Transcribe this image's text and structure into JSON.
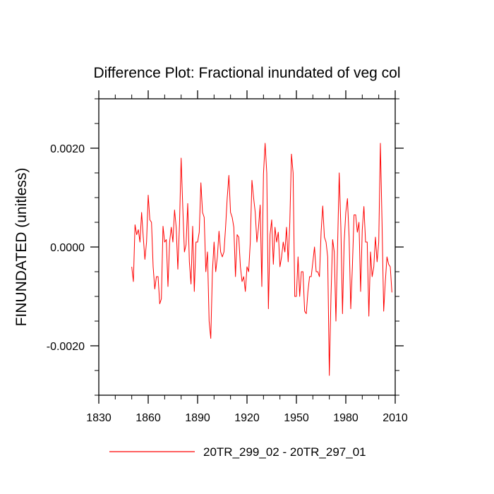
{
  "chart_data": {
    "type": "line",
    "title": "Difference Plot: Fractional inundated of veg col",
    "xlabel": "",
    "ylabel": "FINUNDATED  (unitless)",
    "xlim": [
      1830,
      2010
    ],
    "ylim": [
      -0.003,
      0.003
    ],
    "x_ticks": [
      1830,
      1860,
      1890,
      1920,
      1950,
      1980,
      2010
    ],
    "x_tick_labels": [
      "1830",
      "1860",
      "1890",
      "1920",
      "1950",
      "1980",
      "2010"
    ],
    "y_ticks": [
      -0.002,
      0.0,
      0.002
    ],
    "y_tick_labels": [
      "-0.0020",
      "0.0000",
      "0.0020"
    ],
    "grid": false,
    "legend_position": "bottom-center",
    "series": [
      {
        "name": "20TR_299_02 - 20TR_297_01",
        "color": "#ff0000",
        "x_start": 1850,
        "x_step": 1,
        "values": [
          -0.0004,
          -0.0007,
          0.00045,
          0.00025,
          0.00035,
          0.0001,
          0.0007,
          0.0002,
          -0.00025,
          0.0001,
          0.00105,
          0.00055,
          0.0005,
          -0.0004,
          -0.00085,
          -0.0006,
          -0.0006,
          -0.00115,
          -0.00105,
          0.00042,
          0.0001,
          0.00015,
          -0.0008,
          0.0001,
          0.0004,
          0.0001,
          0.00075,
          0.0004,
          -0.00045,
          0.00045,
          0.0018,
          0.0008,
          -0.0001,
          5e-05,
          0.00088,
          -0.0003,
          -0.00075,
          0.00042,
          -0.0009,
          0.0001,
          0.0001,
          0.0003,
          0.0013,
          0.0007,
          0.0006,
          -0.0005,
          -0.0001,
          -0.0015,
          -0.00185,
          -0.0005,
          0.0001,
          -0.0005,
          -0.0002,
          0.00032,
          -0.0001,
          -0.0002,
          -0.0001,
          0.0004,
          0.001,
          0.00145,
          0.0007,
          0.0006,
          0.0004,
          -0.0006,
          0.00025,
          0.0002,
          -0.0004,
          -0.0007,
          -0.0006,
          -0.0009,
          -0.0004,
          -0.0005,
          0.0001,
          0.00135,
          0.001,
          0.0007,
          0.0001,
          0.0004,
          0.00085,
          -0.0008,
          0.00148,
          0.0021,
          0.0015,
          -0.00125,
          0.00025,
          0.00055,
          -0.00035,
          0.0004,
          0.0001,
          0.0003,
          -0.0004,
          -0.0002,
          0.0001,
          -0.0001,
          0.0004,
          -0.0003,
          0.0005,
          0.00188,
          0.0015,
          -0.001,
          -0.001,
          -0.0002,
          -0.001,
          -0.0005,
          -0.0005,
          -0.0013,
          -0.00135,
          -0.0009,
          -0.0006,
          -0.0006,
          -0.0003,
          0.0,
          -0.0005,
          -0.0005,
          -0.0006,
          0.0003,
          0.00083,
          0.0002,
          0.0001,
          -0.0002,
          -0.0026,
          -0.001,
          0.00015,
          -0.0001,
          -0.0015,
          0.0,
          0.0015,
          0.0004,
          -0.00135,
          0.0001,
          0.0007,
          0.00098,
          0.0002,
          -0.00125,
          -0.0004,
          0.00065,
          0.00065,
          0.0003,
          0.0005,
          -0.0009,
          0.00035,
          0.00082,
          0.0001,
          0.0001,
          -0.0014,
          -0.0001,
          -0.0006,
          -0.0004,
          0.0002,
          -0.0003,
          0.0001,
          0.0021,
          0.0005,
          -0.0013,
          -0.0007,
          -0.0002,
          -0.00035,
          -0.0004,
          -0.00092
        ]
      }
    ]
  }
}
